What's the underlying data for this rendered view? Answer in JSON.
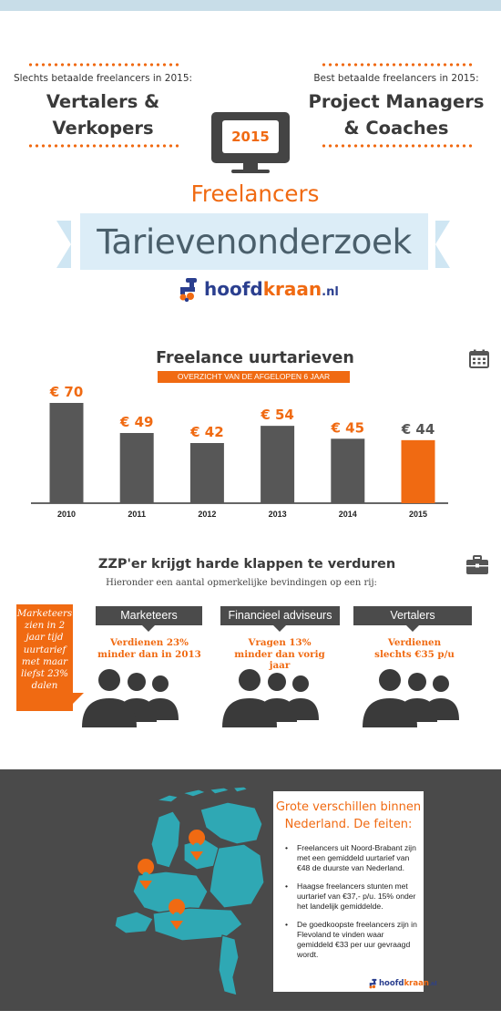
{
  "header": {
    "left_caption": "Slechts betaalde freelancers in 2015:",
    "left_line1": "Vertalers &",
    "left_line2": "Verkopers",
    "right_caption": "Best betaalde freelancers in 2015:",
    "right_line1": "Project Managers",
    "right_line2": "& Coaches",
    "year": "2015",
    "subtitle": "Freelancers",
    "title": "Tarievenonderzoek",
    "logo_part1": "hoofd",
    "logo_part2": "kraan",
    "logo_tld": ".nl"
  },
  "colors": {
    "accent": "#f06a12",
    "bar": "#575757",
    "banner": "#dcedf7",
    "dark": "#4a4a4a",
    "map": "#2fa8b4",
    "brand_blue": "#2b3f8f"
  },
  "chart_section": {
    "title": "Freelance uurtarieven",
    "subtitle": "OVERZICHT VAN DE AFGELOPEN 6 JAAR",
    "icon": "calendar-icon"
  },
  "chart_data": {
    "type": "bar",
    "title": "Freelance uurtarieven",
    "subtitle": "OVERZICHT VAN DE AFGELOPEN 6 JAAR",
    "categories": [
      "2010",
      "2011",
      "2012",
      "2013",
      "2014",
      "2015"
    ],
    "values": [
      70,
      49,
      42,
      54,
      45,
      44
    ],
    "value_labels": [
      "€ 70",
      "€ 49",
      "€ 42",
      "€ 54",
      "€ 45",
      "€ 44"
    ],
    "highlight_index": 5,
    "bar_color": "#575757",
    "highlight_color": "#f06a12",
    "label_color": "#f06a12",
    "highlight_label_color": "#555555",
    "ylim": [
      0,
      75
    ],
    "grid": false,
    "xlabel": "",
    "ylabel": ""
  },
  "zzp": {
    "title": "ZZP'er krijgt harde klappen te verduren",
    "subtitle": "Hieronder een aantal opmerkelijke bevindingen op een rij:",
    "icon": "briefcase-icon",
    "callout": [
      "Marketeers",
      "zien in 2",
      "jaar tijd",
      "uurtarief",
      "met maar",
      "liefst 23%",
      "dalen"
    ],
    "columns": [
      {
        "heading": "Marketeers",
        "text_line1": "Verdienen 23%",
        "text_line2": "minder dan in 2013"
      },
      {
        "heading": "Financieel adviseurs",
        "text_line1": "Vragen 13%",
        "text_line2": "minder dan vorig",
        "text_line3": "jaar"
      },
      {
        "heading": "Vertalers",
        "text_line1": "Verdienen",
        "text_line2": "slechts €35 p/u"
      }
    ]
  },
  "facts": {
    "title_line1": "Grote verschillen binnen",
    "title_line2": "Nederland. De feiten:",
    "items": [
      "Freelancers uit Noord-Brabant zijn met een gemiddeld uurtarief van €48 de duurste van Nederland.",
      "Haagse freelancers stunten met uurtarief van €37,- p/u. 15% onder het landelijk gemiddelde.",
      "De goedkoopste freelancers zijn in Flevoland te vinden waar gemiddeld €33 per uur gevraagd wordt."
    ],
    "logo_part1": "hoofd",
    "logo_part2": "kraan",
    "logo_tld": ".nl"
  }
}
